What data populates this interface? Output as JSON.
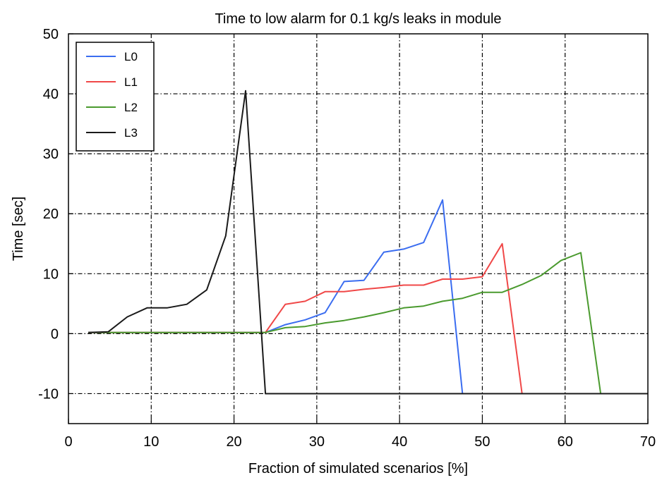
{
  "chart_data": {
    "type": "line",
    "title": "Time to low alarm for 0.1 kg/s leaks in module",
    "xlabel": "Fraction of simulated scenarios [%]",
    "ylabel": "Time [sec]",
    "xlim": [
      0,
      70
    ],
    "ylim": [
      -15,
      50
    ],
    "xticks": [
      0,
      10,
      20,
      30,
      40,
      50,
      60,
      70
    ],
    "yticks": [
      -10,
      0,
      10,
      20,
      30,
      40,
      50
    ],
    "grid": true,
    "legend_position": "top-left",
    "series": [
      {
        "name": "L0",
        "color": "#3b6df0",
        "x": [
          2.4,
          23.8,
          26.2,
          28.6,
          31.0,
          33.3,
          35.7,
          38.1,
          40.5,
          42.9,
          45.2,
          47.6,
          70
        ],
        "y": [
          0.2,
          0.2,
          1.5,
          2.3,
          3.5,
          8.7,
          8.9,
          13.6,
          14.1,
          15.2,
          22.3,
          -10,
          -10
        ]
      },
      {
        "name": "L1",
        "color": "#f04848",
        "x": [
          2.4,
          23.8,
          26.2,
          28.6,
          31.0,
          33.3,
          35.7,
          38.1,
          40.5,
          42.9,
          45.2,
          47.6,
          50.0,
          52.4,
          54.8,
          70
        ],
        "y": [
          0.2,
          0.2,
          4.9,
          5.4,
          7.0,
          7.0,
          7.4,
          7.7,
          8.1,
          8.1,
          9.1,
          9.1,
          9.5,
          15.0,
          -10,
          -10
        ]
      },
      {
        "name": "L2",
        "color": "#4a9a2e",
        "x": [
          2.4,
          23.8,
          26.2,
          28.6,
          31.0,
          33.3,
          35.7,
          38.1,
          40.5,
          42.9,
          45.2,
          47.6,
          50.0,
          52.4,
          54.8,
          57.1,
          59.5,
          61.9,
          64.3,
          70
        ],
        "y": [
          0.2,
          0.2,
          1.0,
          1.2,
          1.8,
          2.2,
          2.8,
          3.5,
          4.3,
          4.6,
          5.4,
          5.9,
          6.9,
          6.9,
          8.2,
          9.7,
          12.2,
          13.5,
          -10,
          -10
        ]
      },
      {
        "name": "L3",
        "color": "#1a1a1a",
        "x": [
          2.4,
          4.8,
          7.1,
          9.5,
          11.9,
          14.3,
          16.7,
          19.0,
          21.4,
          23.8,
          70
        ],
        "y": [
          0.2,
          0.3,
          2.8,
          4.3,
          4.3,
          4.9,
          7.3,
          16.3,
          40.5,
          -10,
          -10
        ]
      }
    ]
  }
}
